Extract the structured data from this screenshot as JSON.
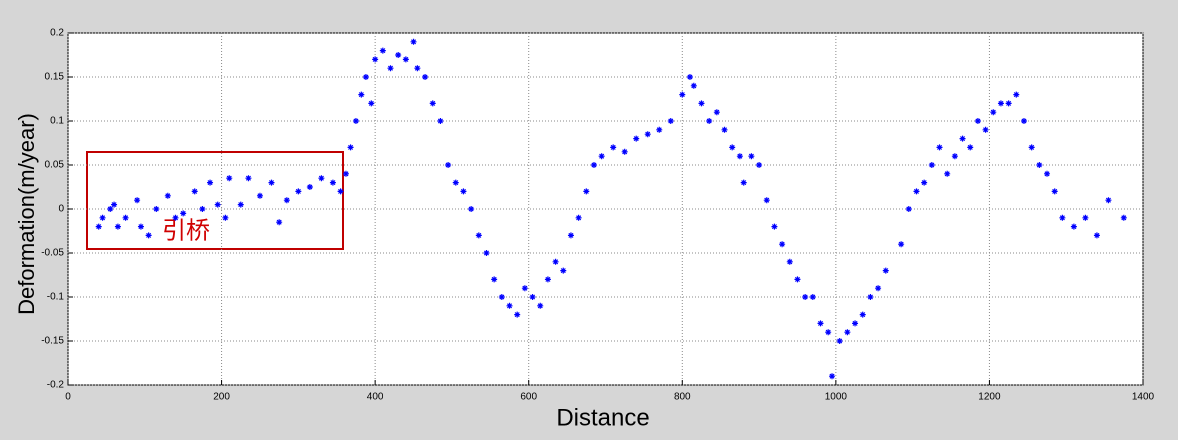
{
  "chart_data": {
    "type": "scatter",
    "xlabel": "Distance",
    "ylabel": "Deformation(m/year)",
    "annotation": "引桥",
    "color": "#0000ff",
    "xlim": [
      0,
      1400
    ],
    "xticks": [
      0,
      200,
      400,
      600,
      800,
      1000,
      1200,
      1400
    ],
    "ylim": [
      -0.2,
      0.2
    ],
    "yticks": [
      -0.2,
      -0.15,
      -0.1,
      -0.05,
      0,
      0.05,
      0.1,
      0.15,
      0.2
    ],
    "grid": true,
    "x": [
      40,
      45,
      55,
      60,
      65,
      75,
      90,
      95,
      105,
      115,
      130,
      140,
      150,
      165,
      175,
      185,
      195,
      205,
      210,
      225,
      235,
      250,
      265,
      275,
      285,
      300,
      315,
      330,
      345,
      355,
      362,
      368,
      375,
      382,
      388,
      395,
      400,
      410,
      420,
      430,
      440,
      450,
      455,
      465,
      475,
      485,
      495,
      505,
      515,
      525,
      535,
      545,
      555,
      565,
      575,
      585,
      595,
      605,
      615,
      625,
      635,
      645,
      655,
      665,
      675,
      685,
      695,
      710,
      725,
      740,
      755,
      770,
      785,
      800,
      810,
      815,
      825,
      835,
      845,
      855,
      865,
      875,
      880,
      890,
      900,
      910,
      920,
      930,
      940,
      950,
      960,
      970,
      980,
      990,
      995,
      1005,
      1015,
      1025,
      1035,
      1045,
      1055,
      1065,
      1085,
      1095,
      1105,
      1115,
      1125,
      1135,
      1145,
      1155,
      1165,
      1175,
      1185,
      1195,
      1205,
      1215,
      1225,
      1235,
      1245,
      1255,
      1265,
      1275,
      1285,
      1295,
      1310,
      1325,
      1340,
      1355,
      1375
    ],
    "y": [
      -0.02,
      -0.01,
      0,
      0.005,
      -0.02,
      -0.01,
      0.01,
      -0.02,
      -0.03,
      0,
      0.015,
      -0.01,
      -0.005,
      0.02,
      0,
      0.03,
      0.005,
      -0.01,
      0.035,
      0.005,
      0.035,
      0.015,
      0.03,
      -0.015,
      0.01,
      0.02,
      0.025,
      0.035,
      0.03,
      0.02,
      0.04,
      0.07,
      0.1,
      0.13,
      0.15,
      0.12,
      0.17,
      0.18,
      0.16,
      0.175,
      0.17,
      0.19,
      0.16,
      0.15,
      0.12,
      0.1,
      0.05,
      0.03,
      0.02,
      0,
      -0.03,
      -0.05,
      -0.08,
      -0.1,
      -0.11,
      -0.12,
      -0.09,
      -0.1,
      -0.11,
      -0.08,
      -0.06,
      -0.07,
      -0.03,
      -0.01,
      0.02,
      0.05,
      0.06,
      0.07,
      0.065,
      0.08,
      0.085,
      0.09,
      0.1,
      0.13,
      0.15,
      0.14,
      0.12,
      0.1,
      0.11,
      0.09,
      0.07,
      0.06,
      0.03,
      0.06,
      0.05,
      0.01,
      -0.02,
      -0.04,
      -0.06,
      -0.08,
      -0.1,
      -0.1,
      -0.13,
      -0.14,
      -0.19,
      -0.15,
      -0.14,
      -0.13,
      -0.12,
      -0.1,
      -0.09,
      -0.07,
      -0.04,
      0,
      0.02,
      0.03,
      0.05,
      0.07,
      0.04,
      0.06,
      0.08,
      0.07,
      0.1,
      0.09,
      0.11,
      0.12,
      0.12,
      0.13,
      0.1,
      0.07,
      0.05,
      0.04,
      0.02,
      -0.01,
      -0.02,
      -0.01,
      -0.03,
      0.01,
      -0.01
    ]
  }
}
